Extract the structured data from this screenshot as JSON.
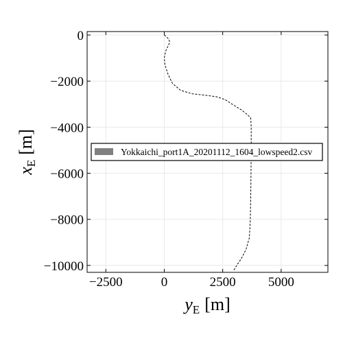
{
  "chart_data": {
    "type": "line",
    "title": "",
    "xlabel": {
      "var": "y",
      "sub": "E",
      "unit": "[m]"
    },
    "ylabel": {
      "var": "x",
      "sub": "E",
      "unit": "[m]"
    },
    "xlim": [
      -3300,
      7000
    ],
    "ylim": [
      -10300,
      150
    ],
    "x_ticks": [
      -2500,
      0,
      2500,
      5000
    ],
    "y_ticks": [
      0,
      -2000,
      -4000,
      -6000,
      -8000,
      -10000
    ],
    "x_tick_labels": [
      "−2500",
      "0",
      "2500",
      "5000"
    ],
    "y_tick_labels": [
      "0",
      "−2000",
      "−4000",
      "−6000",
      "−8000",
      "−10000"
    ],
    "grid": true,
    "legend_position": "center-left",
    "series": [
      {
        "name": "Yokkaichi_port1A_20201112_1604_lowspeed2.csv",
        "style": "dashed",
        "color": "#000000",
        "legend_color": "#808080",
        "points": [
          [
            0,
            0
          ],
          [
            100,
            -80
          ],
          [
            210,
            -200
          ],
          [
            230,
            -330
          ],
          [
            150,
            -500
          ],
          [
            60,
            -700
          ],
          [
            0,
            -1000
          ],
          [
            30,
            -1300
          ],
          [
            160,
            -1700
          ],
          [
            350,
            -2100
          ],
          [
            700,
            -2400
          ],
          [
            1200,
            -2550
          ],
          [
            1800,
            -2620
          ],
          [
            2250,
            -2680
          ],
          [
            2600,
            -2800
          ],
          [
            2900,
            -3000
          ],
          [
            3300,
            -3250
          ],
          [
            3550,
            -3450
          ],
          [
            3700,
            -3600
          ],
          [
            3720,
            -4000
          ],
          [
            3720,
            -5000
          ],
          [
            3710,
            -6000
          ],
          [
            3700,
            -7000
          ],
          [
            3680,
            -8000
          ],
          [
            3640,
            -8800
          ],
          [
            3500,
            -9300
          ],
          [
            3300,
            -9700
          ],
          [
            3100,
            -10000
          ],
          [
            2950,
            -10250
          ]
        ]
      }
    ]
  }
}
